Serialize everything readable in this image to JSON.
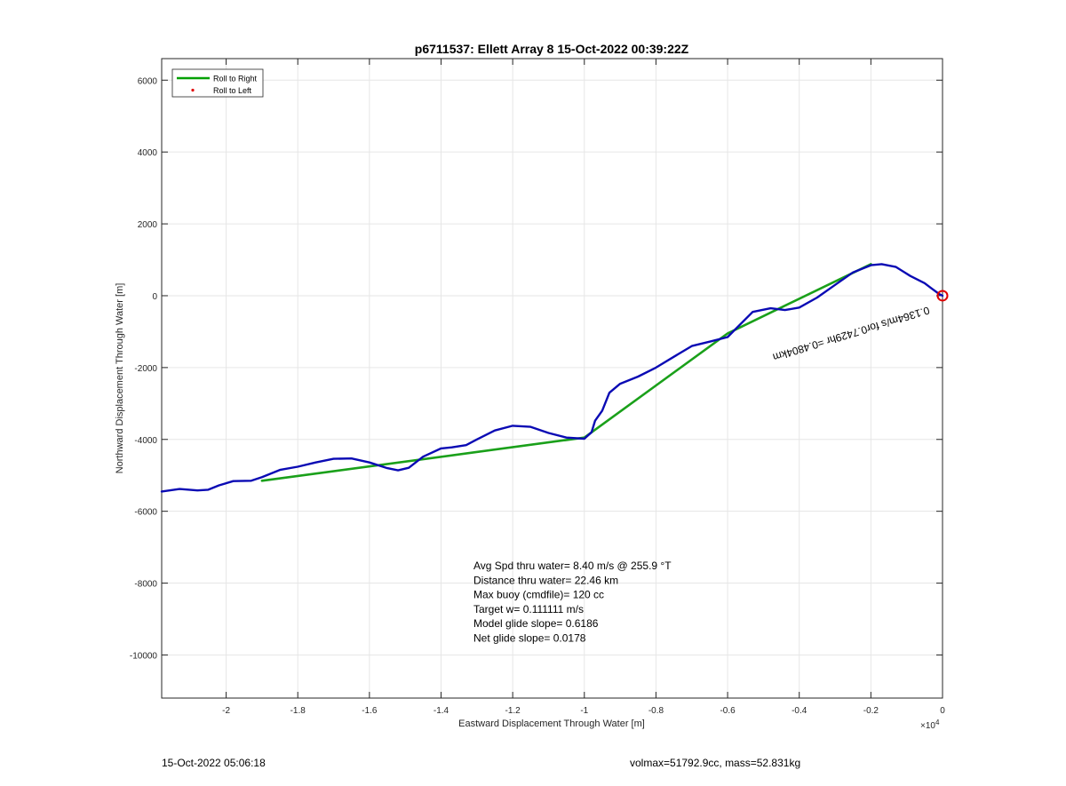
{
  "chart_data": {
    "type": "line",
    "title": "p6711537: Ellett Array 8 15-Oct-2022 00:39:22Z",
    "xlabel": "Eastward Displacement Through Water [m]",
    "ylabel": "Northward Displacement Through Water [m]",
    "x_exponent_label": "×10",
    "x_exponent": "4",
    "xlim": [
      -2.18,
      0
    ],
    "ylim": [
      -11200,
      6600
    ],
    "xticks": [
      -2,
      -1.8,
      -1.6,
      -1.4,
      -1.2,
      -1,
      -0.8,
      -0.6,
      -0.4,
      -0.2,
      0
    ],
    "xtick_labels": [
      "-2",
      "-1.8",
      "-1.6",
      "-1.4",
      "-1.2",
      "-1",
      "-0.8",
      "-0.6",
      "-0.4",
      "-0.2",
      "0"
    ],
    "yticks": [
      6000,
      4000,
      2000,
      0,
      -2000,
      -4000,
      -6000,
      -8000,
      -10000
    ],
    "ytick_labels": [
      "6000",
      "4000",
      "2000",
      "0",
      "-2000",
      "-4000",
      "-6000",
      "-8000",
      "-10000"
    ],
    "grid": true,
    "legend_position": "top-left",
    "legend": [
      {
        "label": "Roll to Right",
        "color": "#00a000",
        "style": "line"
      },
      {
        "label": "Roll to Left",
        "color": "#e00000",
        "style": "dot"
      }
    ],
    "series": [
      {
        "name": "Roll to Right",
        "color": "#1aa01a",
        "x": [
          -1.9,
          -1.0,
          -0.6,
          -0.2
        ],
        "y": [
          -5150,
          -3950,
          -1050,
          880
        ]
      },
      {
        "color": "#0a0ab4",
        "x": [
          -2.18,
          -2.13,
          -2.08,
          -2.05,
          -2.02,
          -1.98,
          -1.93,
          -1.9,
          -1.85,
          -1.8,
          -1.75,
          -1.7,
          -1.65,
          -1.6,
          -1.55,
          -1.52,
          -1.49,
          -1.45,
          -1.4,
          -1.37,
          -1.33,
          -1.3,
          -1.25,
          -1.2,
          -1.15,
          -1.1,
          -1.05,
          -1.0,
          -0.98,
          -0.97,
          -0.95,
          -0.93,
          -0.9,
          -0.85,
          -0.8,
          -0.75,
          -0.7,
          -0.65,
          -0.6,
          -0.57,
          -0.53,
          -0.48,
          -0.44,
          -0.4,
          -0.35,
          -0.3,
          -0.25,
          -0.2,
          -0.17,
          -0.13,
          -0.09,
          -0.05,
          -0.03,
          -0.01,
          0
        ],
        "y": [
          -5450,
          -5380,
          -5420,
          -5400,
          -5280,
          -5160,
          -5150,
          -5050,
          -4850,
          -4760,
          -4640,
          -4540,
          -4530,
          -4640,
          -4800,
          -4860,
          -4790,
          -4480,
          -4250,
          -4220,
          -4160,
          -4000,
          -3750,
          -3620,
          -3650,
          -3820,
          -3950,
          -3980,
          -3800,
          -3480,
          -3200,
          -2700,
          -2450,
          -2250,
          -2000,
          -1700,
          -1400,
          -1280,
          -1150,
          -850,
          -450,
          -350,
          -400,
          -330,
          -50,
          300,
          650,
          850,
          880,
          800,
          550,
          350,
          200,
          50,
          0
        ]
      }
    ],
    "marker": {
      "x": 0,
      "y": 0,
      "color": "#e00000"
    },
    "annotations": [
      "Avg Spd thru water=  8.40 m/s @ 255.9 °T",
      "Distance thru water= 22.46 km",
      "Max buoy (cmdfile)= 120 cc",
      "Target w= 0.111111 m/s",
      "Model glide slope= 0.6186",
      "Net glide slope= 0.0178"
    ],
    "rotated_label": "0.1364m/s for0.7429hr =0.4804km",
    "rotated_label_angle_deg": 163
  },
  "footer": {
    "left": "15-Oct-2022 05:06:18",
    "right": "volmax=51792.9cc, mass=52.831kg"
  }
}
